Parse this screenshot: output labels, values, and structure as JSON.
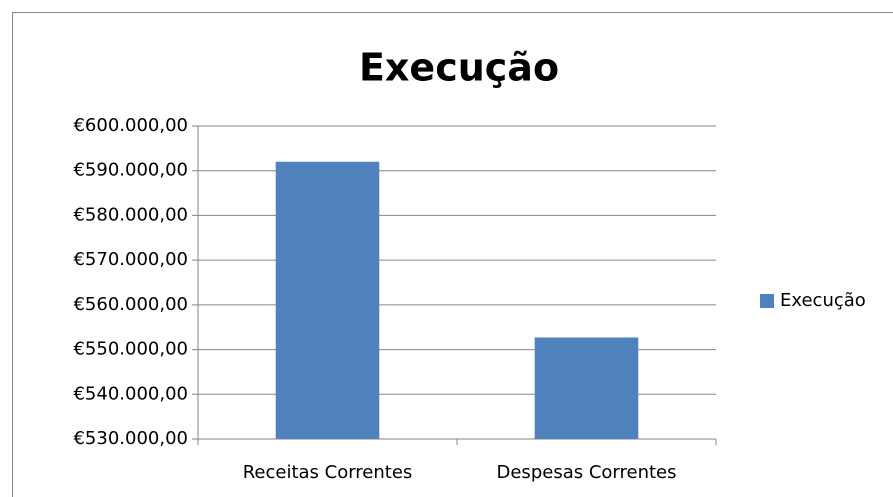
{
  "chart_data": {
    "type": "bar",
    "title": "Execução",
    "categories": [
      "Receitas Correntes",
      "Despesas Correntes"
    ],
    "series": [
      {
        "name": "Execução",
        "color": "#4f81bd",
        "values": [
          592000,
          552700
        ]
      }
    ],
    "ylim": [
      530000,
      600000
    ],
    "yticks": [
      {
        "value": 530000,
        "label": "€530.000,00"
      },
      {
        "value": 540000,
        "label": "€540.000,00"
      },
      {
        "value": 550000,
        "label": "€550.000,00"
      },
      {
        "value": 560000,
        "label": "€560.000,00"
      },
      {
        "value": 570000,
        "label": "€570.000,00"
      },
      {
        "value": 580000,
        "label": "€580.000,00"
      },
      {
        "value": 590000,
        "label": "€590.000,00"
      },
      {
        "value": 600000,
        "label": "€600.000,00"
      }
    ],
    "grid": true,
    "legend": "right"
  }
}
